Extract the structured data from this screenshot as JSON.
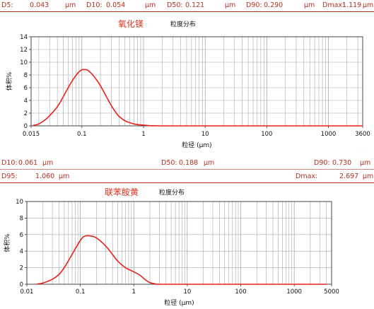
{
  "top_stats": [
    {
      "label": "D5:",
      "value": "0.043",
      "unit": "μm"
    },
    {
      "label": "D10:",
      "value": "0.054",
      "unit": "μm"
    },
    {
      "label": "D50:",
      "value": "0.121",
      "unit": "μm"
    },
    {
      "label": "D90:",
      "value": "0.290",
      "unit": "μm"
    },
    {
      "label": "Dmax:",
      "value": "1.119",
      "unit": "μm"
    }
  ],
  "bottom_stats": {
    "row1": [
      {
        "label": "D10:",
        "value": "0.061",
        "unit": "μm"
      },
      {
        "label": "D50:",
        "value": "0.188",
        "unit": "μm"
      },
      {
        "label": "D90:",
        "value": "0.730",
        "unit": "μm"
      }
    ],
    "row2": [
      {
        "label": "D95:",
        "value": "1.060",
        "unit": "μm"
      },
      {
        "label": "Dmax:",
        "value": "2.697",
        "unit": "μm"
      }
    ]
  },
  "chart_data": [
    {
      "type": "line",
      "sample_name": "氧化镁",
      "title": "粒度分布",
      "xlabel": "粒径 (μm)",
      "ylabel": "体积%",
      "x_scale": "log",
      "xlim": [
        0.015,
        3600
      ],
      "ylim": [
        0,
        14
      ],
      "xticks": [
        "0.015",
        "0.1",
        "1",
        "10",
        "100",
        "1000",
        "3600"
      ],
      "yticks": [
        "0",
        "2",
        "4",
        "6",
        "8",
        "10",
        "12",
        "14"
      ],
      "grid": true,
      "line_color": "#e8221a",
      "series": [
        {
          "x": [
            0.016,
            0.02,
            0.025,
            0.03,
            0.04,
            0.05,
            0.06,
            0.07,
            0.08,
            0.09,
            0.1,
            0.11,
            0.12,
            0.13,
            0.15,
            0.18,
            0.2,
            0.25,
            0.3,
            0.35,
            0.4,
            0.5,
            0.6,
            0.7,
            0.8,
            1.0,
            1.2,
            1.5,
            2,
            5,
            20,
            100,
            1000,
            3600
          ],
          "y": [
            0.05,
            0.3,
            0.9,
            1.6,
            3.0,
            4.6,
            6.0,
            7.1,
            7.9,
            8.5,
            8.8,
            8.85,
            8.8,
            8.6,
            8.0,
            7.0,
            6.3,
            4.6,
            3.2,
            2.2,
            1.5,
            0.8,
            0.5,
            0.3,
            0.2,
            0.12,
            0.05,
            0.02,
            0,
            0,
            0,
            0,
            0,
            0
          ]
        }
      ]
    },
    {
      "type": "line",
      "sample_name": "联苯胺黄",
      "title": "粒度分布",
      "xlabel": "粒径 (μm)",
      "ylabel": "体积%",
      "x_scale": "log",
      "xlim": [
        0.01,
        5000
      ],
      "ylim": [
        0,
        10
      ],
      "xticks": [
        "0.01",
        "0.1",
        "1",
        "10",
        "100",
        "1000",
        "5000"
      ],
      "yticks": [
        "0",
        "2",
        "4",
        "6",
        "8",
        "10"
      ],
      "grid": true,
      "line_color": "#e8221a",
      "series": [
        {
          "x": [
            0.015,
            0.02,
            0.03,
            0.04,
            0.05,
            0.07,
            0.1,
            0.12,
            0.15,
            0.2,
            0.3,
            0.4,
            0.5,
            0.7,
            1.0,
            1.3,
            1.6,
            2.0,
            2.5,
            3.0,
            10,
            100,
            1000,
            4000
          ],
          "y": [
            0.0,
            0.15,
            0.6,
            1.2,
            2.0,
            3.6,
            5.3,
            5.8,
            5.85,
            5.6,
            4.6,
            3.6,
            2.8,
            2.0,
            1.5,
            1.1,
            0.6,
            0.2,
            0.05,
            0,
            0,
            0,
            0,
            0
          ]
        }
      ]
    }
  ]
}
